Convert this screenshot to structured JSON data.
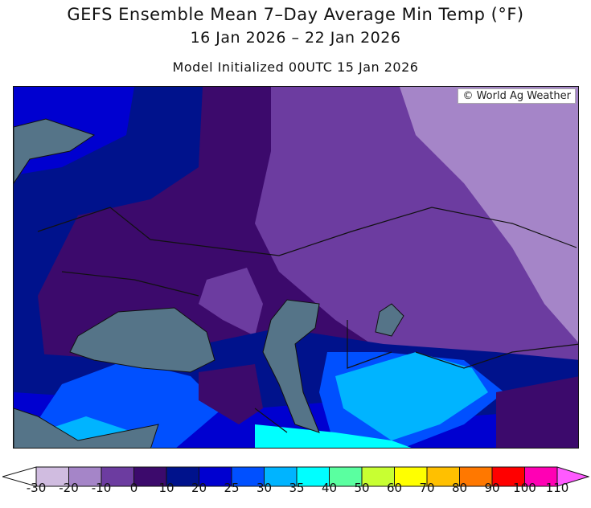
{
  "title": "GEFS Ensemble Mean 7–Day Average Min Temp (°F)",
  "subtitle": "16 Jan 2026 – 22 Jan 2026",
  "initialized": "Model Initialized 00UTC 15 Jan 2026",
  "credit": "© World Ag Weather",
  "colorbar": {
    "labels": [
      "-30",
      "-20",
      "-10",
      "0",
      "10",
      "20",
      "25",
      "30",
      "35",
      "40",
      "50",
      "60",
      "70",
      "80",
      "90",
      "100",
      "110"
    ],
    "colors": [
      "#d0bce0",
      "#a585c8",
      "#6c3ca0",
      "#3c0a6c",
      "#00128c",
      "#0000d0",
      "#0050ff",
      "#00b4ff",
      "#00ffff",
      "#5affa0",
      "#c8ff32",
      "#ffff00",
      "#ffc000",
      "#ff7800",
      "#ff0000",
      "#ff00b4",
      "#ff5aff"
    ],
    "below_color": "#ffffff"
  },
  "map_colors": {
    "water": "#557488",
    "border": "#111111"
  }
}
